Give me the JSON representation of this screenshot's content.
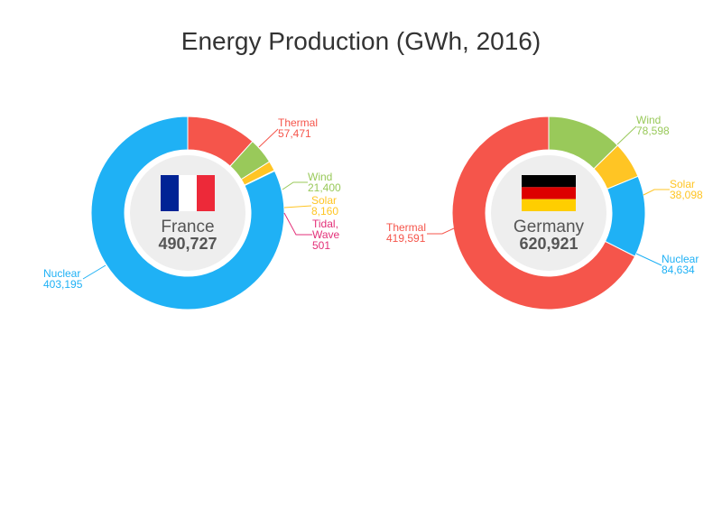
{
  "title": "Energy Production (GWh, 2016)",
  "colors": {
    "Thermal": "#f5554b",
    "Wind": "#99c95a",
    "Solar": "#ffc524",
    "Tidal,\nWave": "#e32f78",
    "Nuclear": "#1fb1f5"
  },
  "chart_data": [
    {
      "type": "pie",
      "country": "France",
      "total_label": "490,727",
      "flag": "france-flag",
      "categories": [
        "Thermal",
        "Wind",
        "Solar",
        "Tidal,\nWave",
        "Nuclear"
      ],
      "values": [
        57471,
        21400,
        8160,
        501,
        403195
      ],
      "value_labels": [
        "57,471",
        "21,400",
        "8,160",
        "501",
        "403,195"
      ]
    },
    {
      "type": "pie",
      "country": "Germany",
      "total_label": "620,921",
      "flag": "germany-flag",
      "categories": [
        "Wind",
        "Solar",
        "Nuclear",
        "Thermal"
      ],
      "values": [
        78598,
        38098,
        84634,
        419591
      ],
      "value_labels": [
        "78,598",
        "38,098",
        "84,634",
        "419,591"
      ]
    }
  ]
}
